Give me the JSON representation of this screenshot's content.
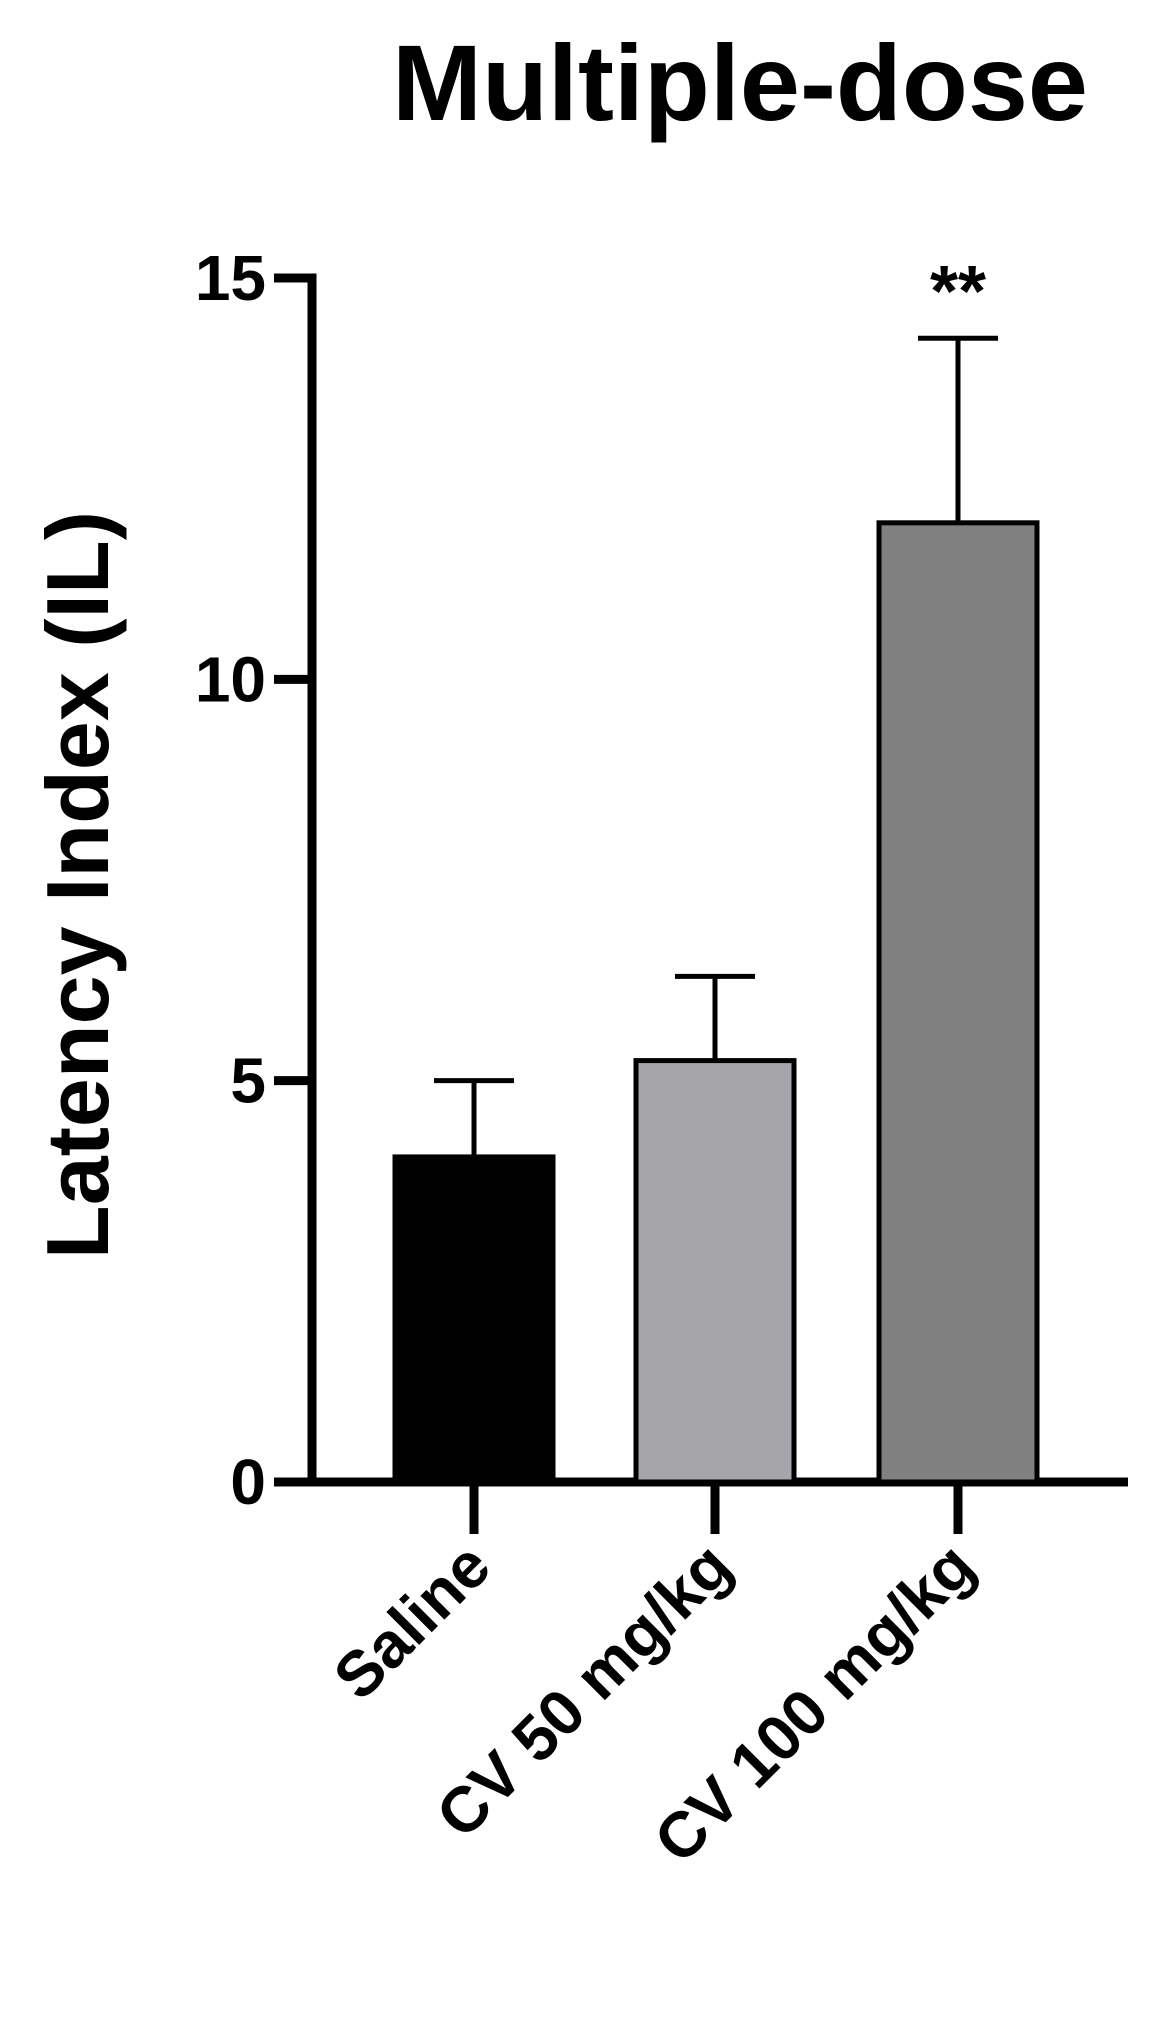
{
  "chart_data": {
    "type": "bar",
    "title": "Multiple-dose",
    "ylabel": "Latency Index (IL)",
    "xlabel": "",
    "ylim": [
      0,
      15
    ],
    "yticks": [
      0,
      5,
      10,
      15
    ],
    "categories": [
      "Saline",
      "CV 50 mg/kg",
      "CV 100 mg/kg"
    ],
    "values": [
      4.05,
      5.25,
      11.95
    ],
    "errors": [
      0.95,
      1.05,
      2.3
    ],
    "colors": [
      "#000000",
      "#a6a6aa",
      "#808080"
    ],
    "annotations": [
      "",
      "",
      "**"
    ],
    "grid": false
  }
}
